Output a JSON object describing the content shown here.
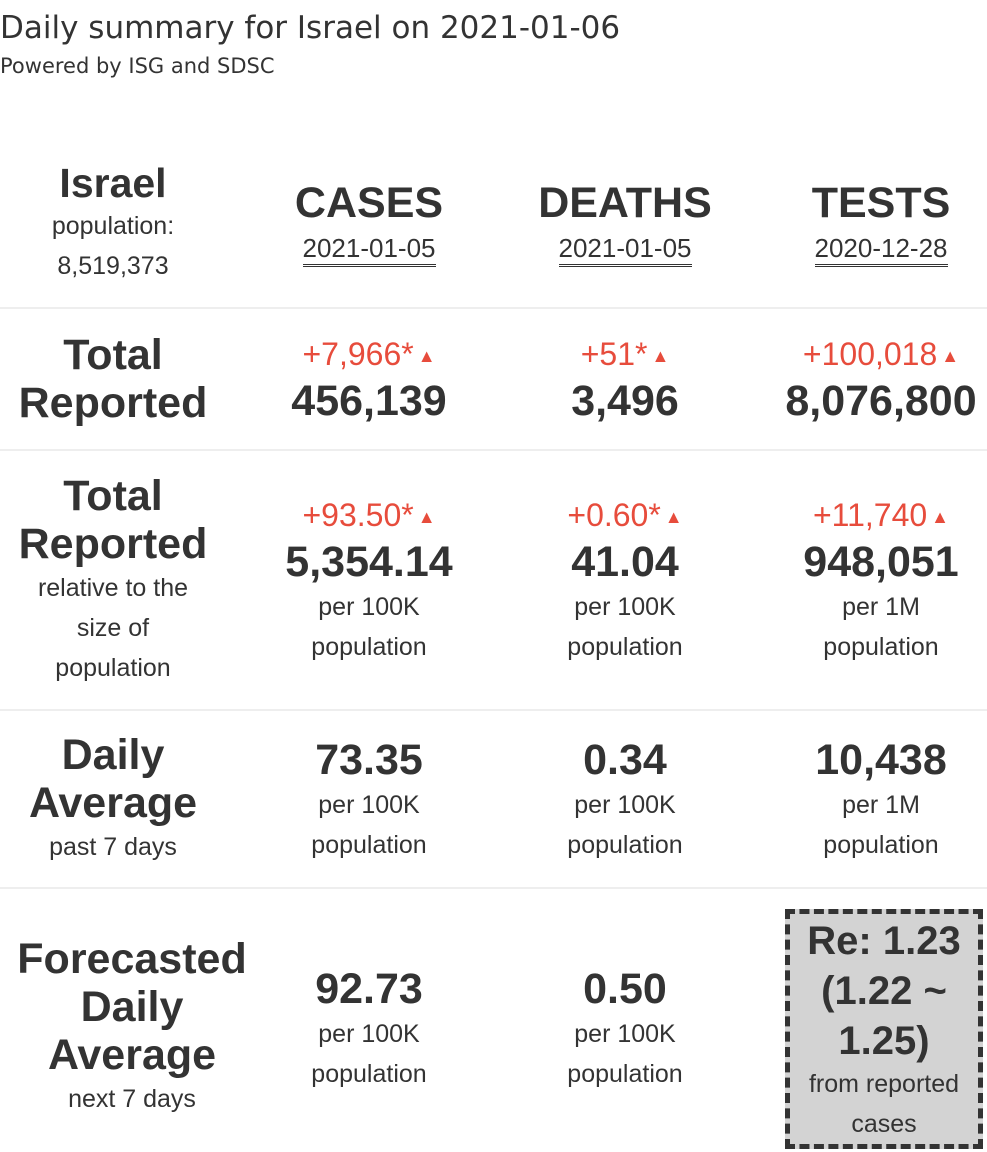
{
  "header": {
    "title": "Daily summary for Israel on 2021-01-06",
    "subtitle": "Powered by ISG and SDSC"
  },
  "place": {
    "name": "Israel",
    "population_label": "population:",
    "population_value": "8,519,373"
  },
  "columns": [
    {
      "name": "CASES",
      "date": "2021-01-05"
    },
    {
      "name": "DEATHS",
      "date": "2021-01-05"
    },
    {
      "name": "TESTS",
      "date": "2020-12-28"
    }
  ],
  "total_reported": {
    "label_line1": "Total",
    "label_line2": "Reported",
    "cases": {
      "delta": "+7,966*",
      "value": "456,139"
    },
    "deaths": {
      "delta": "+51*",
      "value": "3,496"
    },
    "tests": {
      "delta": "+100,018",
      "value": "8,076,800"
    }
  },
  "relative": {
    "label_line1": "Total",
    "label_line2": "Reported",
    "sub_line1": "relative to the",
    "sub_line2": "size of",
    "sub_line3": "population",
    "cases": {
      "delta": "+93.50*",
      "value": "5,354.14",
      "unit1": "per 100K",
      "unit2": "population"
    },
    "deaths": {
      "delta": "+0.60*",
      "value": "41.04",
      "unit1": "per 100K",
      "unit2": "population"
    },
    "tests": {
      "delta": "+11,740",
      "value": "948,051",
      "unit1": "per 1M",
      "unit2": "population"
    }
  },
  "daily_average": {
    "label_line1": "Daily",
    "label_line2": "Average",
    "sub": "past 7 days",
    "cases": {
      "value": "73.35",
      "unit1": "per 100K",
      "unit2": "population"
    },
    "deaths": {
      "value": "0.34",
      "unit1": "per 100K",
      "unit2": "population"
    },
    "tests": {
      "value": "10,438",
      "unit1": "per 1M",
      "unit2": "population"
    }
  },
  "forecast": {
    "label_line1": "Forecasted",
    "label_line2": "Daily",
    "label_line3": "Average",
    "sub": "next 7 days",
    "cases": {
      "value": "92.73",
      "unit1": "per 100K",
      "unit2": "population"
    },
    "deaths": {
      "value": "0.50",
      "unit1": "per 100K",
      "unit2": "population"
    },
    "re": {
      "line1": "Re: 1.23",
      "line2": "(1.22 ~",
      "line3": "1.25)",
      "sub1": "from reported",
      "sub2": "cases"
    }
  },
  "colors": {
    "delta": "#e74c3c",
    "text": "#333333",
    "re_box_bg": "#d3d3d3"
  },
  "icons": {
    "increase": "triangle-up"
  }
}
